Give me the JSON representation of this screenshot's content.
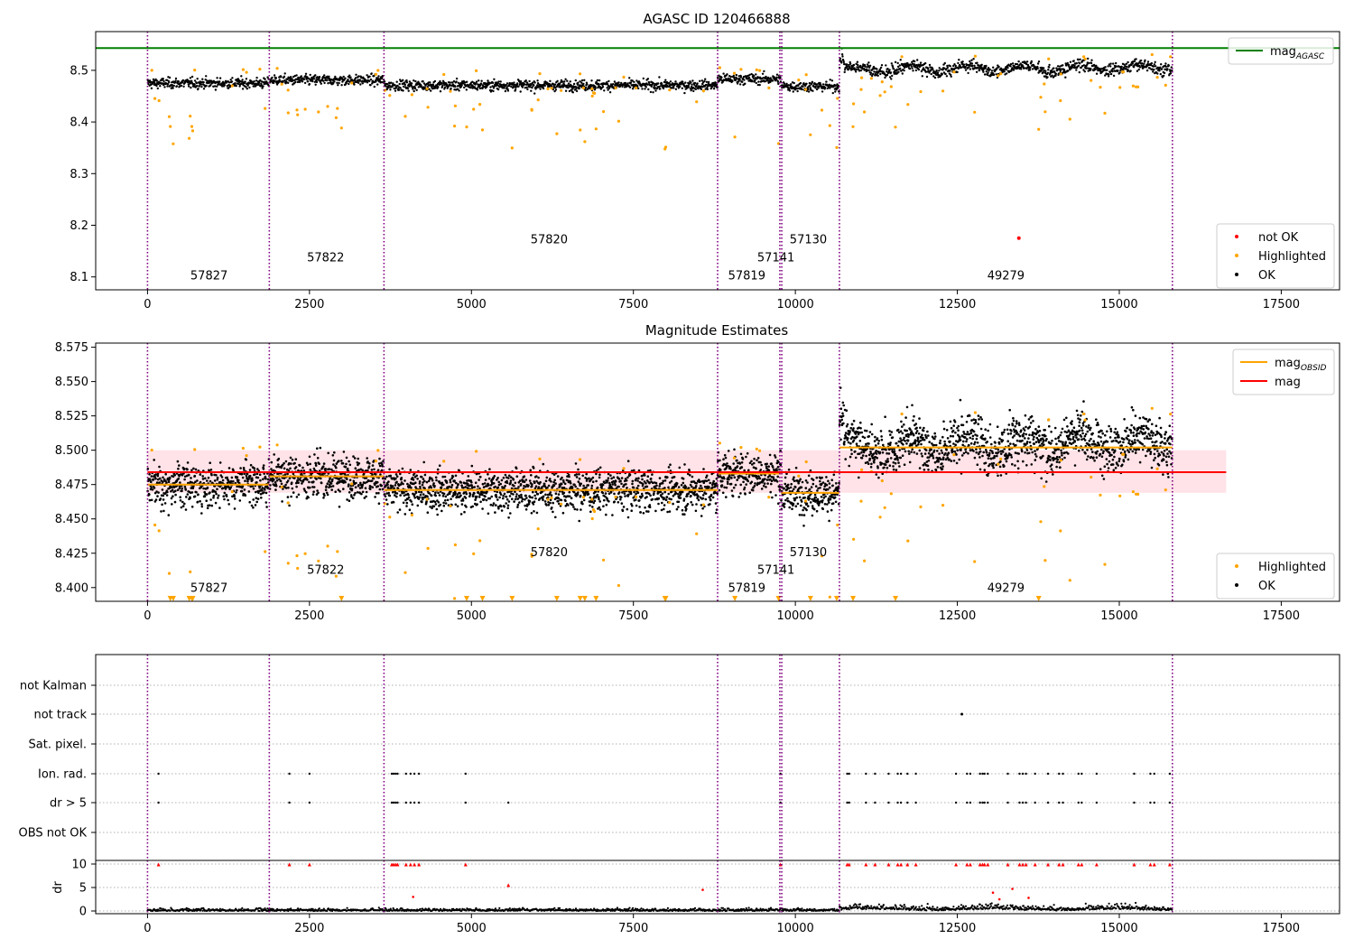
{
  "chart_data": [
    {
      "type": "scatter",
      "title": "AGASC ID 120466888",
      "xlim": [
        -800,
        18400
      ],
      "ylim": [
        8.075,
        8.575
      ],
      "xticks": [
        0,
        2500,
        5000,
        7500,
        10000,
        12500,
        15000,
        17500
      ],
      "yticks": [
        8.1,
        8.2,
        8.3,
        8.4,
        8.5
      ],
      "hline": {
        "name": "mag",
        "sub": "AGASC",
        "y": 8.543,
        "color": "#008000"
      },
      "legend_top": [
        {
          "label": "mag",
          "sub": "AGASC",
          "color": "#008000",
          "kind": "line"
        }
      ],
      "legend_bottom": [
        {
          "label": "not OK",
          "color": "#ff0000",
          "kind": "dot"
        },
        {
          "label": "Highlighted",
          "color": "#ffa500",
          "kind": "dot"
        },
        {
          "label": "OK",
          "color": "#000000",
          "kind": "dot"
        }
      ],
      "obs_labels": [
        {
          "text": "57827",
          "x": 950,
          "y": 8.095
        },
        {
          "text": "57822",
          "x": 2750,
          "y": 8.13
        },
        {
          "text": "57820",
          "x": 6200,
          "y": 8.165
        },
        {
          "text": "57819",
          "x": 9250,
          "y": 8.095
        },
        {
          "text": "57141",
          "x": 9700,
          "y": 8.13
        },
        {
          "text": "57130",
          "x": 10200,
          "y": 8.165
        },
        {
          "text": "49279",
          "x": 13250,
          "y": 8.095
        }
      ],
      "not_ok_points": [
        {
          "x": 13450,
          "y": 8.175
        }
      ]
    },
    {
      "type": "scatter",
      "title": "Magnitude Estimates",
      "xlim": [
        -800,
        18400
      ],
      "ylim": [
        8.39,
        8.578
      ],
      "xticks": [
        0,
        2500,
        5000,
        7500,
        10000,
        12500,
        15000,
        17500
      ],
      "yticks": [
        8.4,
        8.425,
        8.45,
        8.475,
        8.5,
        8.525,
        8.55,
        8.575
      ],
      "mean_mag": 8.484,
      "band": [
        8.469,
        8.5
      ],
      "band_xlim": [
        0,
        16650
      ],
      "legend_top": [
        {
          "label": "mag",
          "sub": "OBSID",
          "color": "#ffa500",
          "kind": "line"
        },
        {
          "label": "mag",
          "sub": "",
          "color": "#ff0000",
          "kind": "line"
        }
      ],
      "legend_bottom": [
        {
          "label": "Highlighted",
          "color": "#ffa500",
          "kind": "dot"
        },
        {
          "label": "OK",
          "color": "#000000",
          "kind": "dot"
        }
      ],
      "obs_labels": [
        {
          "text": "57827",
          "x": 950,
          "y": 8.397
        },
        {
          "text": "57822",
          "x": 2750,
          "y": 8.41
        },
        {
          "text": "57820",
          "x": 6200,
          "y": 8.423
        },
        {
          "text": "57819",
          "x": 9250,
          "y": 8.397
        },
        {
          "text": "57141",
          "x": 9700,
          "y": 8.41
        },
        {
          "text": "57130",
          "x": 10200,
          "y": 8.423
        },
        {
          "text": "49279",
          "x": 13250,
          "y": 8.397
        }
      ]
    },
    {
      "type": "scatter",
      "flag_labels": [
        "not Kalman",
        "not track",
        "Sat. pixel.",
        "Ion. rad.",
        "dr > 5",
        "OBS not OK"
      ],
      "dr_ylabel": "dr",
      "dr_yticks": [
        0,
        5,
        10
      ],
      "xlim": [
        -800,
        18400
      ],
      "xticks": [
        0,
        2500,
        5000,
        7500,
        10000,
        12500,
        15000,
        17500
      ],
      "not_track_x": [
        12570
      ],
      "flag_x": [
        170,
        2190,
        2500,
        3770,
        3800,
        3830,
        3860,
        3990,
        4060,
        4120,
        4190,
        4910,
        9770,
        10800,
        10830,
        11090,
        11230,
        11440,
        11580,
        11630,
        11730,
        11860,
        12480,
        12650,
        12700,
        12850,
        12890,
        12920,
        12970,
        13280,
        13460,
        13510,
        13560,
        13700,
        13900,
        14070,
        14130,
        14370,
        14420,
        14650,
        15230,
        15480,
        15540,
        15780
      ],
      "dr5_only_x": [
        5570
      ]
    }
  ],
  "x_series": {
    "obs_boundaries": [
      0,
      1880,
      3650,
      8800,
      9760,
      9790,
      10680,
      15820
    ],
    "segments": [
      {
        "x0": 0,
        "x1": 1880,
        "mag": 8.475
      },
      {
        "x0": 1880,
        "x1": 3650,
        "mag": 8.481
      },
      {
        "x0": 3650,
        "x1": 8800,
        "mag": 8.471
      },
      {
        "x0": 8800,
        "x1": 9780,
        "mag": 8.483
      },
      {
        "x0": 9780,
        "x1": 10680,
        "mag": 8.469
      },
      {
        "x0": 10680,
        "x1": 15820,
        "mag": 8.502
      }
    ]
  },
  "colors": {
    "ok": "#000000",
    "highlighted": "#ffa500",
    "not_ok": "#ff0000",
    "boundary": "#800080",
    "band": "#ffc0cb",
    "obsid_line": "#ffa500",
    "mean_line": "#ff0000"
  }
}
